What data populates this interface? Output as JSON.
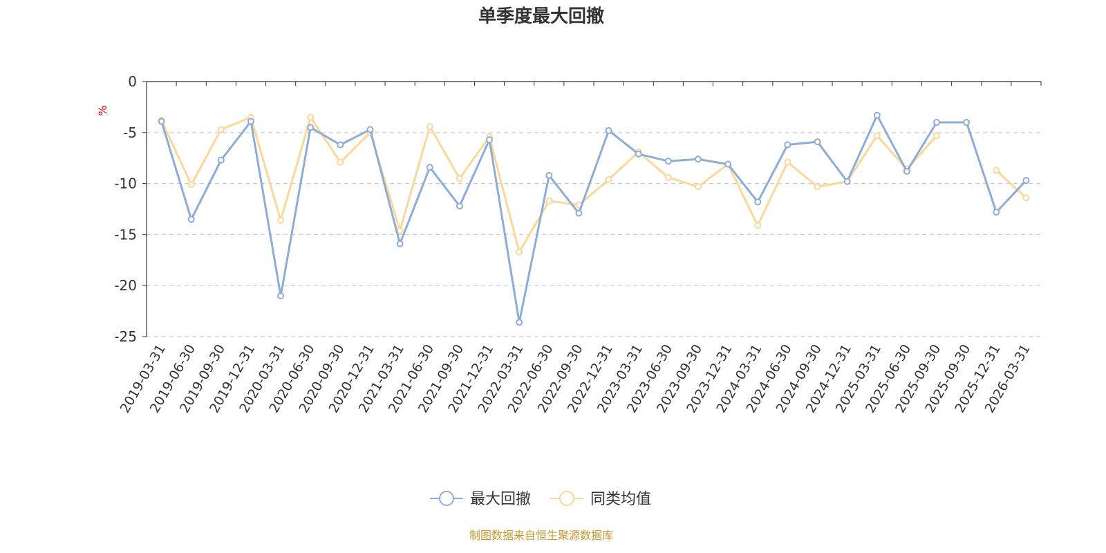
{
  "chart_data": {
    "type": "line",
    "title": "单季度最大回撤",
    "ylabel": "%",
    "ylim": [
      -25,
      0
    ],
    "yticks": [
      0,
      -5,
      -10,
      -15,
      -20,
      -25
    ],
    "grid": true,
    "legend_position": "bottom-center",
    "categories": [
      "2019-03-31",
      "2019-06-30",
      "2019-09-30",
      "2019-12-31",
      "2020-03-31",
      "2020-06-30",
      "2020-09-30",
      "2020-12-31",
      "2021-03-31",
      "2021-06-30",
      "2021-09-30",
      "2021-12-31",
      "2022-03-31",
      "2022-06-30",
      "2022-09-30",
      "2022-12-31",
      "2023-03-31",
      "2023-06-30",
      "2023-09-30",
      "2023-12-31",
      "2024-03-31",
      "2024-06-30",
      "2024-09-30",
      "2024-12-31",
      "2025-03-31",
      "2025-06-30",
      "2025-09-30",
      "2025-09-30",
      "2025-12-31",
      "2026-03-31"
    ],
    "series": [
      {
        "name": "最大回撤",
        "color": "#8eacd8",
        "values": [
          -3.9,
          -13.5,
          -7.7,
          -3.9,
          -21.0,
          -4.5,
          -6.2,
          -4.7,
          -15.9,
          -8.4,
          -12.2,
          -5.7,
          -23.6,
          -9.2,
          -12.9,
          -4.8,
          -7.1,
          -7.8,
          -7.6,
          -8.1,
          -11.8,
          -6.2,
          -5.9,
          -9.8,
          -3.3,
          -8.8,
          -4.0,
          -4.0,
          -12.8,
          -9.7
        ]
      },
      {
        "name": "同类均值",
        "color": "#fbd898",
        "values": [
          -3.8,
          -10.1,
          -4.7,
          -3.5,
          -13.6,
          -3.5,
          -7.9,
          -5.0,
          -14.6,
          -4.4,
          -9.5,
          -5.4,
          -16.7,
          -11.7,
          -12.1,
          -9.6,
          -6.9,
          -9.4,
          -10.3,
          -8.1,
          -14.1,
          -7.9,
          -10.3,
          -9.8,
          -5.3,
          -8.6,
          -5.3,
          null,
          -8.7,
          -11.4
        ]
      }
    ]
  },
  "footer": {
    "source_text": "制图数据来自恒生聚源数据库",
    "source_color": "#c8982c"
  },
  "colors": {
    "axis": "#333333",
    "grid": "#cccccc",
    "unit": "#ee0000"
  }
}
